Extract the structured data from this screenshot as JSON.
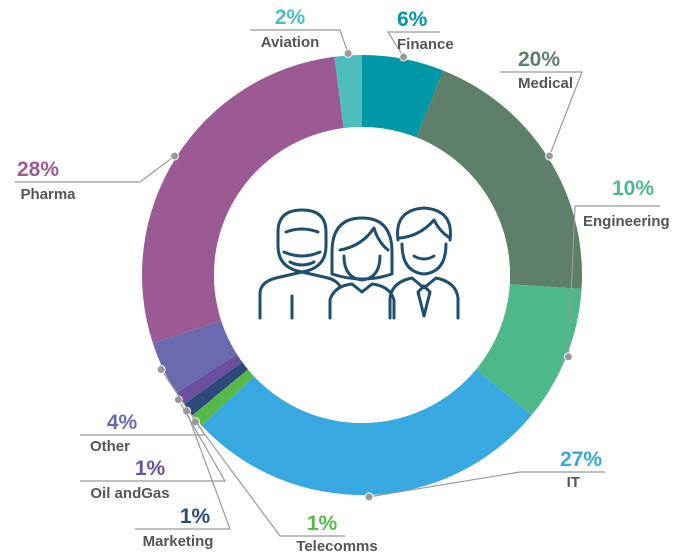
{
  "chart_data": {
    "type": "donut",
    "categories": [
      "Finance",
      "Medical",
      "Engineering",
      "IT",
      "Telecomms",
      "Marketing",
      "Oil andGas",
      "Other",
      "Pharma",
      "Aviation"
    ],
    "values": [
      6,
      20,
      10,
      27,
      1,
      1,
      1,
      4,
      28,
      2
    ],
    "value_labels": [
      "6%",
      "20%",
      "10%",
      "27%",
      "1%",
      "1%",
      "1%",
      "4%",
      "28%",
      "2%"
    ],
    "colors": [
      "#0097a7",
      "#5e7f6a",
      "#4db88a",
      "#37a9e0",
      "#56b84a",
      "#2e4a7a",
      "#6a4fa0",
      "#6b6aae",
      "#9b5a93",
      "#4dbdbd"
    ]
  }
}
